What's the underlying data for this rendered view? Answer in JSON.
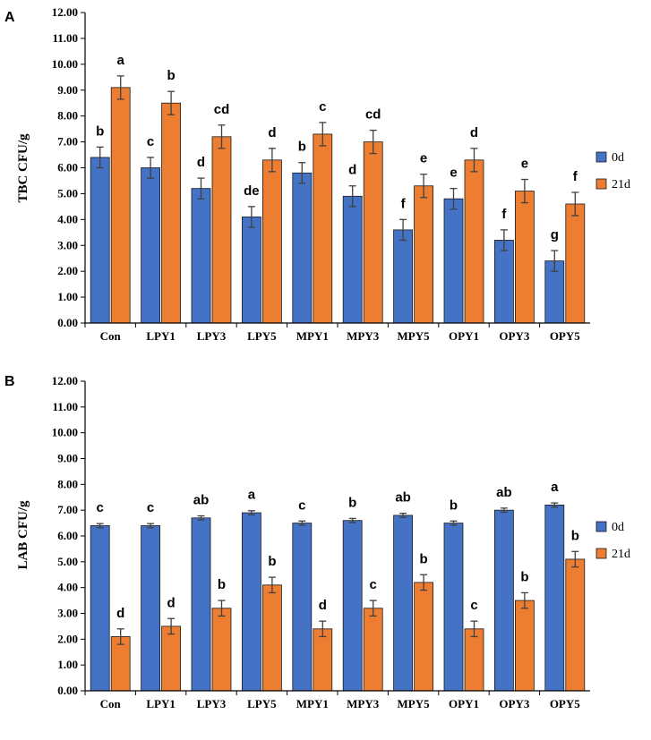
{
  "colors": {
    "day0": "#4472C4",
    "day21": "#ED7D31",
    "err": "#404040",
    "axis": "#000000"
  },
  "chart_data": [
    {
      "type": "bar",
      "panel": "A",
      "ylabel": "TBC CFU/g",
      "ylim": [
        0,
        12
      ],
      "yticks": [
        "0.00",
        "1.00",
        "2.00",
        "3.00",
        "4.00",
        "5.00",
        "6.00",
        "7.00",
        "8.00",
        "9.00",
        "10.00",
        "11.00",
        "12.00"
      ],
      "categories": [
        "Con",
        "LPY1",
        "LPY3",
        "LPY5",
        "MPY1",
        "MPY3",
        "MPY5",
        "OPY1",
        "OPY3",
        "OPY5"
      ],
      "series": [
        {
          "name": "0d",
          "values": [
            6.4,
            6.0,
            5.2,
            4.1,
            5.8,
            4.9,
            3.6,
            4.8,
            3.2,
            2.4
          ],
          "errors": [
            0.4,
            0.4,
            0.4,
            0.4,
            0.4,
            0.4,
            0.4,
            0.4,
            0.4,
            0.4
          ],
          "letters": [
            "b",
            "c",
            "d",
            "de",
            "b",
            "d",
            "f",
            "e",
            "f",
            "g"
          ]
        },
        {
          "name": "21d",
          "values": [
            9.1,
            8.5,
            7.2,
            6.3,
            7.3,
            7.0,
            5.3,
            6.3,
            5.1,
            4.6
          ],
          "errors": [
            0.45,
            0.45,
            0.45,
            0.45,
            0.45,
            0.45,
            0.45,
            0.45,
            0.45,
            0.45
          ],
          "letters": [
            "a",
            "b",
            "cd",
            "d",
            "c",
            "cd",
            "e",
            "d",
            "e",
            "f"
          ]
        }
      ],
      "legend": "right"
    },
    {
      "type": "bar",
      "panel": "B",
      "ylabel": "LAB CFU/g",
      "ylim": [
        0,
        12
      ],
      "yticks": [
        "0.00",
        "1.00",
        "2.00",
        "3.00",
        "4.00",
        "5.00",
        "6.00",
        "7.00",
        "8.00",
        "9.00",
        "10.00",
        "11.00",
        "12.00"
      ],
      "categories": [
        "Con",
        "LPY1",
        "LPY3",
        "LPY5",
        "MPY1",
        "MPY3",
        "MPY5",
        "OPY1",
        "OPY3",
        "OPY5"
      ],
      "series": [
        {
          "name": "0d",
          "values": [
            6.4,
            6.4,
            6.7,
            6.9,
            6.5,
            6.6,
            6.8,
            6.5,
            7.0,
            7.2
          ],
          "errors": [
            0.08,
            0.08,
            0.08,
            0.08,
            0.08,
            0.08,
            0.08,
            0.08,
            0.08,
            0.08
          ],
          "letters": [
            "c",
            "c",
            "ab",
            "a",
            "c",
            "b",
            "ab",
            "b",
            "ab",
            "a"
          ]
        },
        {
          "name": "21d",
          "values": [
            2.1,
            2.5,
            3.2,
            4.1,
            2.4,
            3.2,
            4.2,
            2.4,
            3.5,
            5.1
          ],
          "errors": [
            0.3,
            0.3,
            0.3,
            0.3,
            0.3,
            0.3,
            0.3,
            0.3,
            0.3,
            0.3
          ],
          "letters": [
            "d",
            "d",
            "b",
            "b",
            "d",
            "c",
            "b",
            "c",
            "b",
            "b"
          ]
        }
      ],
      "legend": "right"
    }
  ]
}
